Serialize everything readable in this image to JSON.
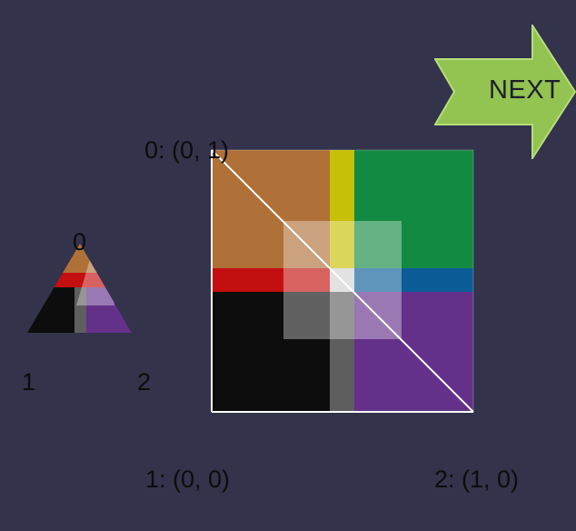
{
  "next_button": {
    "label": "NEXT"
  },
  "triangle": {
    "v0": "0",
    "v1": "1",
    "v2": "2"
  },
  "square": {
    "c0": "0: (0, 1)",
    "c1": "1: (0, 0)",
    "c2": "2: (1, 0)"
  },
  "colors": {
    "background": "#33334b",
    "orange": "#b07138",
    "green": "#138a42",
    "red": "#c30f0f",
    "blue": "#0c5d97",
    "black": "#0d0d0d",
    "purple": "#64318a",
    "yellow": "#c6c006",
    "gray": "#5e5e5e",
    "button": "#93c350"
  }
}
